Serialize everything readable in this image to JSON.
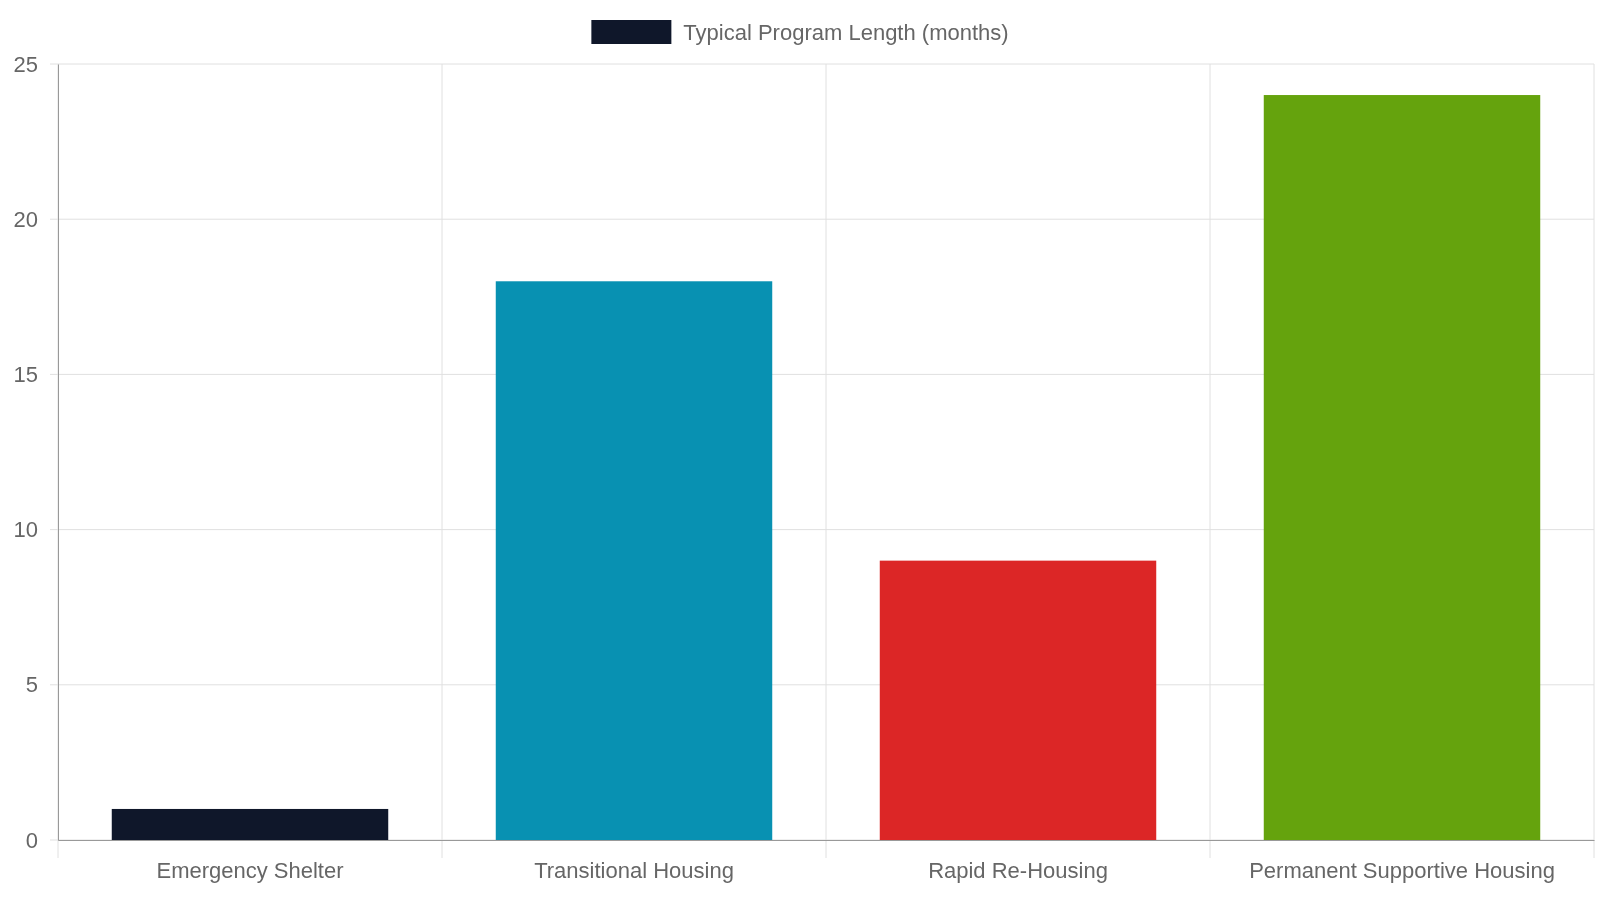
{
  "chart_data": {
    "type": "bar",
    "categories": [
      "Emergency Shelter",
      "Transitional Housing",
      "Rapid Re-Housing",
      "Permanent Supportive Housing"
    ],
    "series": [
      {
        "name": "Typical Program Length (months)",
        "colors": [
          "#0f172a",
          "#0891b2",
          "#dc2626",
          "#65a30d"
        ],
        "values": [
          1,
          18,
          9,
          24
        ]
      }
    ],
    "ylim": [
      0,
      25
    ],
    "yticks": [
      0,
      5,
      10,
      15,
      20,
      25
    ],
    "grid": true,
    "legend": "top"
  }
}
